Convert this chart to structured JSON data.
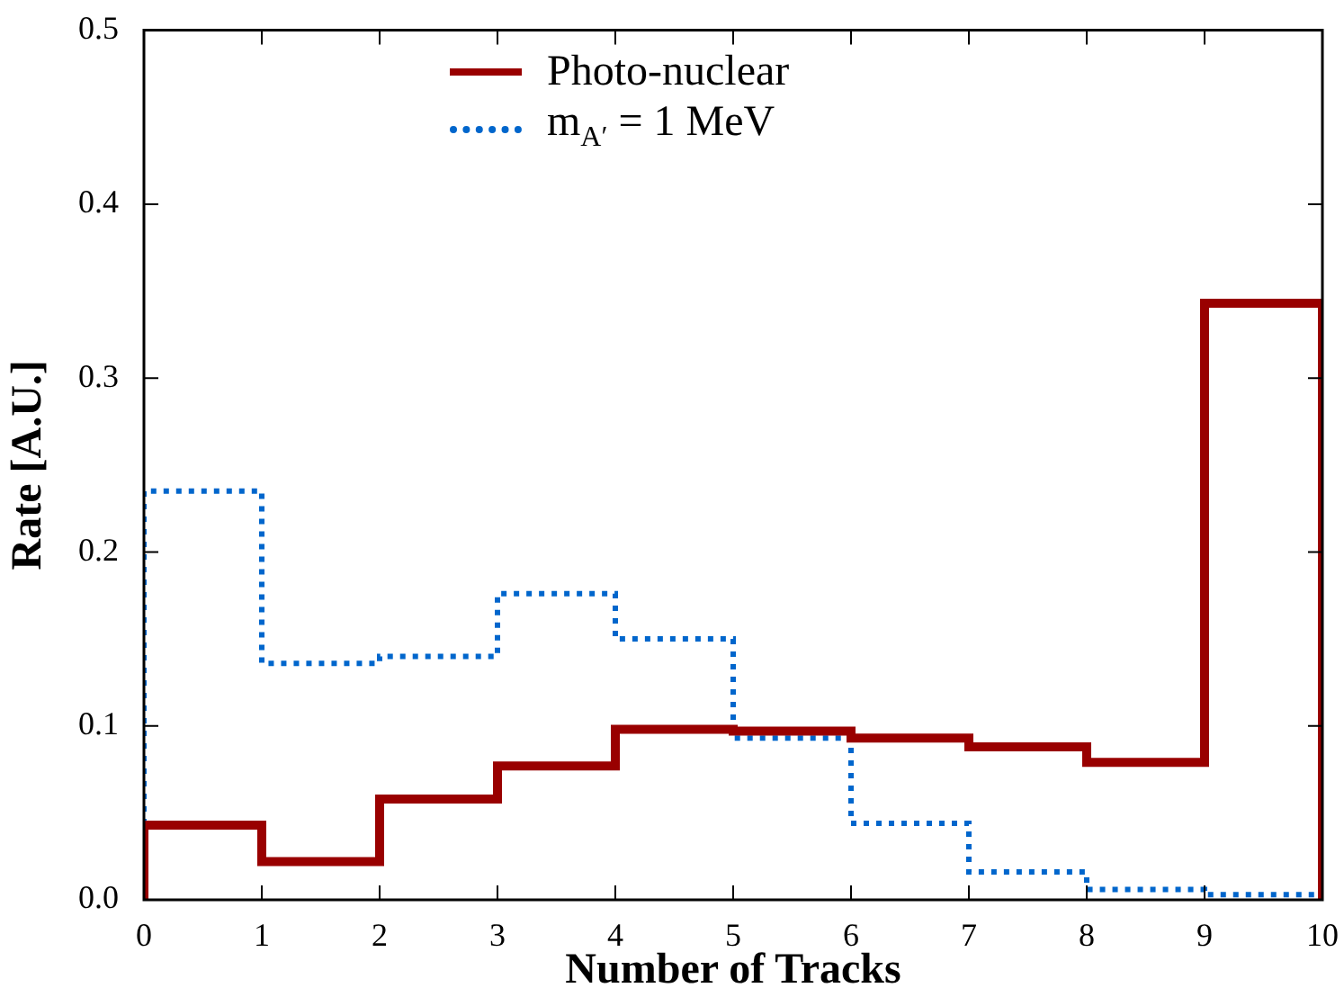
{
  "chart_data": {
    "type": "histogram",
    "xlabel": "Number of Tracks",
    "ylabel": "Rate [A.U.]",
    "bins": [
      0,
      1,
      2,
      3,
      4,
      5,
      6,
      7,
      8,
      9,
      10
    ],
    "series": [
      {
        "name": "Photo-nuclear",
        "color": "#990000",
        "line_style": "solid",
        "values": [
          0.043,
          0.022,
          0.058,
          0.077,
          0.098,
          0.097,
          0.093,
          0.088,
          0.079,
          0.343
        ]
      },
      {
        "name": "m$_{A′}$ = 1 MeV",
        "color": "#0066cc",
        "line_style": "dotted",
        "values": [
          0.235,
          0.136,
          0.14,
          0.176,
          0.15,
          0.093,
          0.044,
          0.016,
          0.006,
          0.003
        ]
      }
    ],
    "xlim": [
      0,
      10
    ],
    "xticks": [
      0,
      1,
      2,
      3,
      4,
      5,
      6,
      7,
      8,
      9,
      10
    ],
    "ylim": [
      0,
      0.5
    ],
    "yticks": [
      {
        "value": 0,
        "label": "0.0"
      },
      {
        "value": 0.1,
        "label": "0.1"
      },
      {
        "value": 0.2,
        "label": "0.2"
      },
      {
        "value": 0.3,
        "label": "0.3"
      },
      {
        "value": 0.4,
        "label": "0.4"
      },
      {
        "value": 0.5,
        "label": "0.5"
      }
    ],
    "grid": false,
    "legend": "top"
  }
}
